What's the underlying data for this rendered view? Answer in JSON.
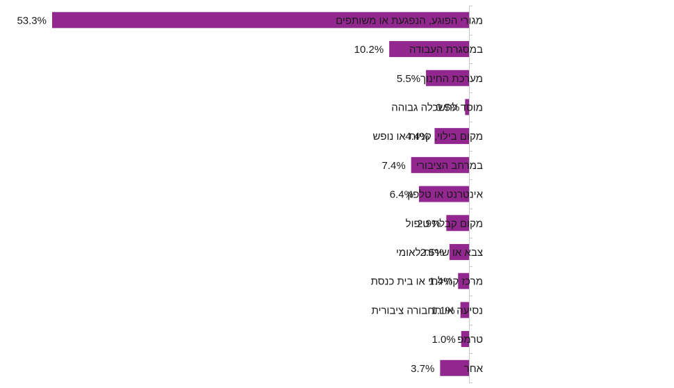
{
  "chart_data": {
    "type": "bar",
    "orientation": "horizontal",
    "value_axis_direction": "leftward",
    "category_position": "right",
    "color": "#92278f",
    "value_format": "percent-1dp",
    "grid": false,
    "legend": "none",
    "categories": [
      "מגורי הפוגע, הנפגעת או משותפים",
      "במסגרת העבודה",
      "מערכת החינוך",
      "מוסד להשכלה גבוהה",
      "מקום בילוי, קניות או נופש",
      "במרחב הציבורי",
      "אינטרנט או טלפון",
      "מקום קבלת טיפול",
      "צבא או שירות לאומי",
      "מרכז קהילתי או בית כנסת",
      "נסיעה או תחבורה ציבורית",
      "טרמפ",
      "אחר"
    ],
    "values": [
      53.3,
      10.2,
      5.5,
      0.5,
      4.4,
      7.4,
      6.4,
      2.9,
      2.5,
      1.4,
      1.1,
      1.0,
      3.7
    ],
    "value_labels": [
      "53.3%",
      "10.2%",
      "5.5%",
      "0.5%",
      "4.4%",
      "7.4%",
      "6.4%",
      "2.9%",
      "2.5%",
      "1.4%",
      "1.1%",
      "1.0%",
      "3.7%"
    ],
    "xlim": [
      0,
      53.3
    ]
  }
}
